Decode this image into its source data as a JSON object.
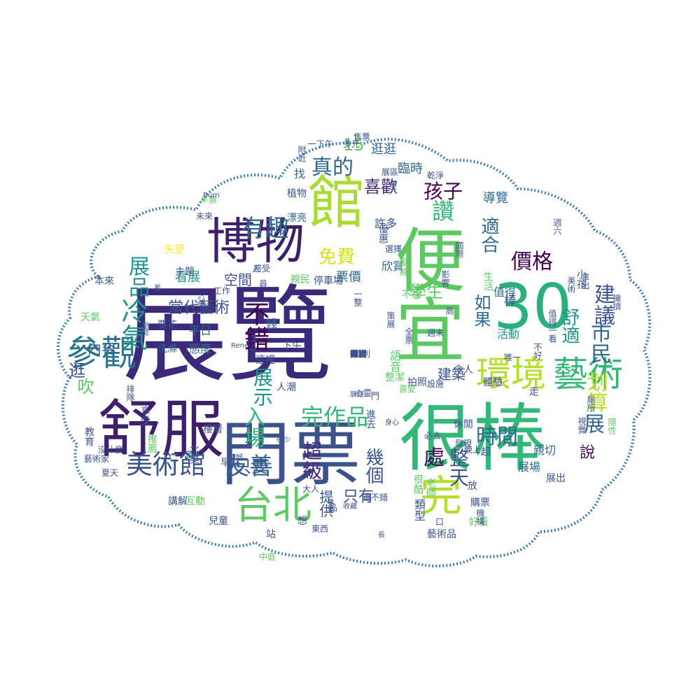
{
  "cloud": {
    "outline_color": "#3d7ab0",
    "palette": [
      "#440154",
      "#3b528b",
      "#21918c",
      "#5ec962",
      "#fde725",
      "#b5de2b",
      "#35b779",
      "#31688e",
      "#482878"
    ],
    "words": [
      {
        "t": "展覽",
        "c": "#3b2a7a"
      },
      {
        "t": "門票",
        "c": "#3b528b"
      },
      {
        "t": "很棒",
        "c": "#35b779"
      },
      {
        "t": "舒服",
        "c": "#3e1f6b"
      },
      {
        "t": "30",
        "c": "#2ab07f"
      },
      {
        "t": "館",
        "c": "#a8db34"
      },
      {
        "t": "博物",
        "c": "#3e1f6b"
      },
      {
        "t": "便宜",
        "c": "#5ec962"
      },
      {
        "t": "環境",
        "c": "#b5de2b"
      },
      {
        "t": "藝術",
        "c": "#35b779"
      },
      {
        "t": "參觀",
        "c": "#2c728e"
      },
      {
        "t": "台北",
        "c": "#5ec962"
      },
      {
        "t": "完",
        "c": "#b5de2b"
      },
      {
        "t": "美術館",
        "c": "#3b528b"
      },
      {
        "t": "冷氣",
        "c": "#21918c"
      },
      {
        "t": "有趣",
        "c": "#31688e"
      },
      {
        "t": "不錯",
        "c": "#440154"
      },
      {
        "t": "友善",
        "c": "#31688e"
      },
      {
        "t": "完作品",
        "c": "#35b779"
      },
      {
        "t": "市民",
        "c": "#31688e"
      },
      {
        "t": "免費",
        "c": "#d2e21b"
      },
      {
        "t": "真的",
        "c": "#31688e"
      },
      {
        "t": "展品",
        "c": "#21918c"
      },
      {
        "t": "入場",
        "c": "#35b779"
      },
      {
        "t": "展示",
        "c": "#21918c"
      },
      {
        "t": "時間",
        "c": "#31688e"
      },
      {
        "t": "價格",
        "c": "#440154"
      },
      {
        "t": "超級",
        "c": "#482878"
      },
      {
        "t": "處",
        "c": "#440154"
      },
      {
        "t": "幾個",
        "c": "#3b528b"
      },
      {
        "t": "整天",
        "c": "#3b528b"
      },
      {
        "t": "孩子",
        "c": "#440154"
      },
      {
        "t": "喜歡",
        "c": "#482878"
      },
      {
        "t": "讚",
        "c": "#35b779"
      },
      {
        "t": "只要",
        "c": "#3b528b"
      },
      {
        "t": "只有",
        "c": "#3b528b"
      },
      {
        "t": "提供",
        "c": "#3b528b"
      },
      {
        "t": "建築",
        "c": "#3b528b"
      },
      {
        "t": "舒適",
        "c": "#21918c"
      },
      {
        "t": "建議",
        "c": "#3b528b"
      },
      {
        "t": "划算",
        "c": "#b5de2b"
      },
      {
        "t": "展",
        "c": "#31688e"
      },
      {
        "t": "說",
        "c": "#440154"
      },
      {
        "t": "15",
        "c": "#5ec962"
      },
      {
        "t": "逛逛",
        "c": "#31688e"
      },
      {
        "t": "臨時",
        "c": "#31688e"
      },
      {
        "t": "導覽",
        "c": "#31688e"
      },
      {
        "t": "適合",
        "c": "#31688e"
      },
      {
        "t": "學生",
        "c": "#5ec962"
      },
      {
        "t": "如果",
        "c": "#31688e"
      },
      {
        "t": "當代藝術",
        "c": "#3b528b"
      },
      {
        "t": "平日",
        "c": "#31688e"
      },
      {
        "t": "態度",
        "c": "#31688e"
      },
      {
        "t": "要花",
        "c": "#3b528b"
      },
      {
        "t": "洗滌",
        "c": "#31688e"
      },
      {
        "t": "錢",
        "c": "#31688e"
      },
      {
        "t": "空間",
        "c": "#3b528b"
      },
      {
        "t": "看展",
        "c": "#21918c"
      },
      {
        "t": "票價",
        "c": "#31688e"
      },
      {
        "t": "欣賞",
        "c": "#31688e"
      },
      {
        "t": "許多",
        "c": "#3b528b"
      },
      {
        "t": "棒",
        "c": "#3b528b"
      },
      {
        "t": "活動",
        "c": "#21918c"
      },
      {
        "t": "值得",
        "c": "#31688e"
      },
      {
        "t": "展場",
        "c": "#31688e"
      },
      {
        "t": "親切",
        "c": "#31688e"
      },
      {
        "t": "展出",
        "c": "#3b528b"
      },
      {
        "t": "購票",
        "c": "#3b528b"
      },
      {
        "t": "藝術品",
        "c": "#3b528b"
      },
      {
        "t": "內容",
        "c": "#31688e"
      },
      {
        "t": "吹",
        "c": "#5ec962"
      },
      {
        "t": "逛",
        "c": "#3b528b"
      },
      {
        "t": "本來",
        "c": "#3b528b"
      },
      {
        "t": "天氣",
        "c": "#5ec962"
      },
      {
        "t": "失望",
        "c": "#fde725"
      },
      {
        "t": "主題",
        "c": "#3b528b"
      },
      {
        "t": "漂亮",
        "c": "#31688e"
      },
      {
        "t": "植物",
        "c": "#3b528b"
      },
      {
        "t": "找",
        "c": "#31688e"
      },
      {
        "t": "未來",
        "c": "#3b528b"
      },
      {
        "t": "半票",
        "c": "#5ec962"
      },
      {
        "t": "下午",
        "c": "#3b528b"
      },
      {
        "t": "這裡",
        "c": "#3b528b"
      },
      {
        "t": "樓層",
        "c": "#3b528b"
      },
      {
        "t": "假日",
        "c": "#3b528b"
      },
      {
        "t": "早點",
        "c": "#3b528b"
      },
      {
        "t": "北美",
        "c": "#3b528b"
      },
      {
        "t": "站",
        "c": "#3b528b"
      },
      {
        "t": "兒童",
        "c": "#3b528b"
      },
      {
        "t": "講解",
        "c": "#3b528b"
      },
      {
        "t": "互動",
        "c": "#5ec962"
      },
      {
        "t": "沒什麼",
        "c": "#3b528b"
      },
      {
        "t": "教育",
        "c": "#3b528b"
      },
      {
        "t": "推薦",
        "c": "#5ec962"
      },
      {
        "t": "享受",
        "c": "#3b528b"
      },
      {
        "t": "夏天",
        "c": "#3b528b"
      },
      {
        "t": "中庭",
        "c": "#5ec962"
      },
      {
        "t": "東西",
        "c": "#3b528b"
      },
      {
        "t": "類型",
        "c": "#3b528b"
      },
      {
        "t": "心靈",
        "c": "#3b528b"
      },
      {
        "t": "設施",
        "c": "#3b528b"
      },
      {
        "t": "休閒",
        "c": "#3b528b"
      },
      {
        "t": "發現",
        "c": "#3b528b"
      },
      {
        "t": "晚上",
        "c": "#3b528b"
      },
      {
        "t": "超",
        "c": "#3b528b"
      },
      {
        "t": "放",
        "c": "#3b528b"
      },
      {
        "t": "很酷",
        "c": "#5ec962"
      },
      {
        "t": "老師",
        "c": "#5ec962"
      },
      {
        "t": "好看",
        "c": "#5ec962"
      },
      {
        "t": "機構",
        "c": "#3b528b"
      },
      {
        "t": "生活",
        "c": "#5ec962"
      },
      {
        "t": "走",
        "c": "#3b528b"
      },
      {
        "t": "廁所",
        "c": "#3b528b"
      },
      {
        "t": "視覺",
        "c": "#3b528b"
      },
      {
        "t": "隨性",
        "c": "#5ec962"
      },
      {
        "t": "擁擠",
        "c": "#3b528b"
      },
      {
        "t": "小孩",
        "c": "#3b528b"
      },
      {
        "t": "美術",
        "c": "#3b528b"
      },
      {
        "t": "動線",
        "c": "#5ec962"
      },
      {
        "t": "親民",
        "c": "#5ec962"
      },
      {
        "t": "停車場",
        "c": "#3b528b"
      },
      {
        "t": "不想",
        "c": "#5ec962"
      },
      {
        "t": "想",
        "c": "#3b528b"
      },
      {
        "t": "人潮",
        "c": "#3b528b"
      },
      {
        "t": "語音",
        "c": "#5ec962"
      },
      {
        "t": "整潔",
        "c": "#5ec962"
      },
      {
        "t": "體驗",
        "c": "#3b528b"
      },
      {
        "t": "拍照",
        "c": "#3b528b"
      },
      {
        "t": "令人",
        "c": "#3b528b"
      },
      {
        "t": "遺憾",
        "c": "#3b528b"
      },
      {
        "t": "期間",
        "c": "#3b528b"
      },
      {
        "t": "Burri",
        "c": "#3b528b"
      },
      {
        "t": "Rene",
        "c": "#3b528b"
      },
      {
        "t": "20",
        "c": "#3b528b"
      },
      {
        "t": "一整",
        "c": "#3b528b"
      },
      {
        "t": "策展",
        "c": "#3b528b"
      },
      {
        "t": "多元",
        "c": "#3b528b"
      },
      {
        "t": "售票",
        "c": "#3b528b"
      },
      {
        "t": "乾淨",
        "c": "#3b528b"
      },
      {
        "t": "展區",
        "c": "#3b528b"
      },
      {
        "t": "唯一",
        "c": "#3b528b"
      },
      {
        "t": "國際",
        "c": "#3b528b"
      },
      {
        "t": "選擇",
        "c": "#3b528b"
      },
      {
        "t": "優惠",
        "c": "#3b528b"
      },
      {
        "t": "感受",
        "c": "#3b528b"
      },
      {
        "t": "差",
        "c": "#3b528b"
      },
      {
        "t": "藝術家",
        "c": "#3b528b"
      },
      {
        "t": "身心",
        "c": "#3b528b"
      },
      {
        "t": "大人",
        "c": "#3b528b"
      },
      {
        "t": "高",
        "c": "#3b528b"
      },
      {
        "t": "長",
        "c": "#3b528b"
      },
      {
        "t": "很少",
        "c": "#3b528b"
      },
      {
        "t": "不好",
        "c": "#3b528b"
      },
      {
        "t": "值得一看",
        "c": "#3b528b"
      },
      {
        "t": "排隊",
        "c": "#3b528b"
      },
      {
        "t": "喜愛",
        "c": "#5ec962"
      },
      {
        "t": "口",
        "c": "#3b528b"
      },
      {
        "t": "門",
        "c": "#3b528b"
      },
      {
        "t": "人",
        "c": "#3b528b"
      },
      {
        "t": "員",
        "c": "#3b528b"
      },
      {
        "t": "工作",
        "c": "#3b528b"
      },
      {
        "t": "整",
        "c": "#3b528b"
      },
      {
        "t": "品",
        "c": "#3b528b"
      },
      {
        "t": "心情",
        "c": "#3b528b"
      },
      {
        "t": "展館",
        "c": "#3b528b"
      },
      {
        "t": "特別",
        "c": "#3b528b"
      },
      {
        "t": "一下午",
        "c": "#3b528b"
      },
      {
        "t": "全票",
        "c": "#3b528b"
      },
      {
        "t": "週末",
        "c": "#3b528b"
      },
      {
        "t": "週六",
        "c": "#3b528b"
      },
      {
        "t": "拿出",
        "c": "#3b528b"
      },
      {
        "t": "影響",
        "c": "#3b528b"
      },
      {
        "t": "還不錯",
        "c": "#3b528b"
      },
      {
        "t": "必去",
        "c": "#3b528b"
      },
      {
        "t": "晃晃",
        "c": "#3b528b"
      },
      {
        "t": "收藏",
        "c": "#3b528b"
      },
      {
        "t": "進去",
        "c": "#3b528b"
      },
      {
        "t": "附近",
        "c": "#3b528b"
      },
      {
        "t": "布展",
        "c": "#3b528b"
      },
      {
        "t": "可惜",
        "c": "#3b528b"
      },
      {
        "t": "推",
        "c": "#3b528b"
      },
      {
        "t": "便利",
        "c": "#3b528b"
      },
      {
        "t": "新",
        "c": "#3b528b"
      },
      {
        "t": "適",
        "c": "#3b528b"
      },
      {
        "t": "因讀",
        "c": "#3b528b"
      }
    ]
  }
}
